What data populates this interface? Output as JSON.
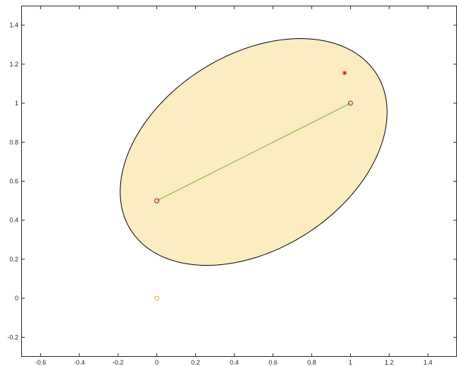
{
  "chart_data": {
    "type": "scatter",
    "title": "",
    "xlabel": "",
    "ylabel": "",
    "xlim": [
      -0.7,
      1.55
    ],
    "ylim": [
      -0.3,
      1.5
    ],
    "grid": false,
    "xticks": [
      "-0.6",
      "-0.4",
      "-0.2",
      "0",
      "0.2",
      "0.4",
      "0.6",
      "0.8",
      "1",
      "1.2",
      "1.4"
    ],
    "yticks": [
      "-0.2",
      "0",
      "0.2",
      "0.4",
      "0.6",
      "0.8",
      "1",
      "1.2",
      "1.4"
    ],
    "ellipse": {
      "center": [
        0.5,
        0.75
      ],
      "semi_axes": [
        0.75,
        0.5
      ],
      "rotation_deg": 32,
      "fill": "#fbecc2",
      "edge": "#000000"
    },
    "segment": {
      "from": [
        0,
        0.5
      ],
      "to": [
        1,
        1
      ],
      "color": "#77ac30"
    },
    "points": [
      {
        "x": 0,
        "y": 0.5,
        "marker": "circle",
        "color": "#a2142f"
      },
      {
        "x": 1,
        "y": 1,
        "marker": "circle",
        "color": "#a2142f"
      },
      {
        "x": 0,
        "y": 0,
        "marker": "circle",
        "color": "#edb120"
      },
      {
        "x": 0.97,
        "y": 1.155,
        "marker": "asterisk",
        "color": "#ff0000"
      }
    ]
  }
}
